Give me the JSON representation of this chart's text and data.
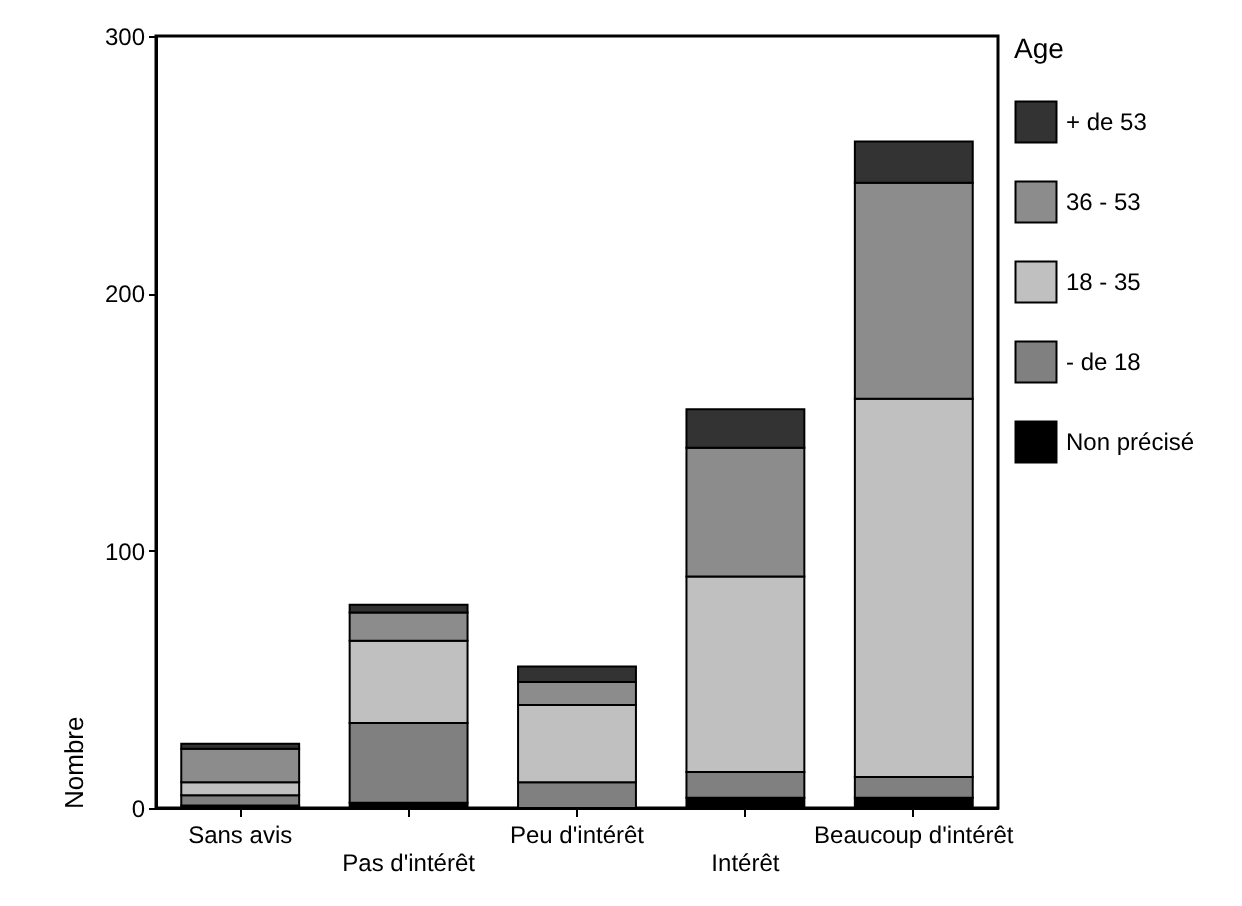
{
  "chart_data": {
    "type": "bar",
    "stacked": true,
    "ylabel": "Nombre",
    "legend_title": "Age",
    "legend": "right",
    "grid": false,
    "categories": [
      "Sans avis",
      "Pas d'intérêt",
      "Peu d'intérêt",
      "Intérêt",
      "Beaucoup d'intérêt"
    ],
    "ylim": [
      0,
      300
    ],
    "yticks": [
      0,
      100,
      200,
      300
    ],
    "series": [
      {
        "name": "Non précisé",
        "color": "#000000",
        "values": [
          1,
          2,
          0,
          4,
          4
        ]
      },
      {
        "name": "- de 18",
        "color": "#808080",
        "values": [
          4,
          31,
          10,
          10,
          8
        ]
      },
      {
        "name": "18 - 35",
        "color": "#c0c0c0",
        "values": [
          5,
          32,
          30,
          76,
          147
        ]
      },
      {
        "name": "36 - 53",
        "color": "#8c8c8c",
        "values": [
          13,
          11,
          9,
          50,
          84
        ]
      },
      {
        "name": "+ de 53",
        "color": "#333333",
        "values": [
          2,
          3,
          6,
          15,
          16
        ]
      }
    ]
  }
}
